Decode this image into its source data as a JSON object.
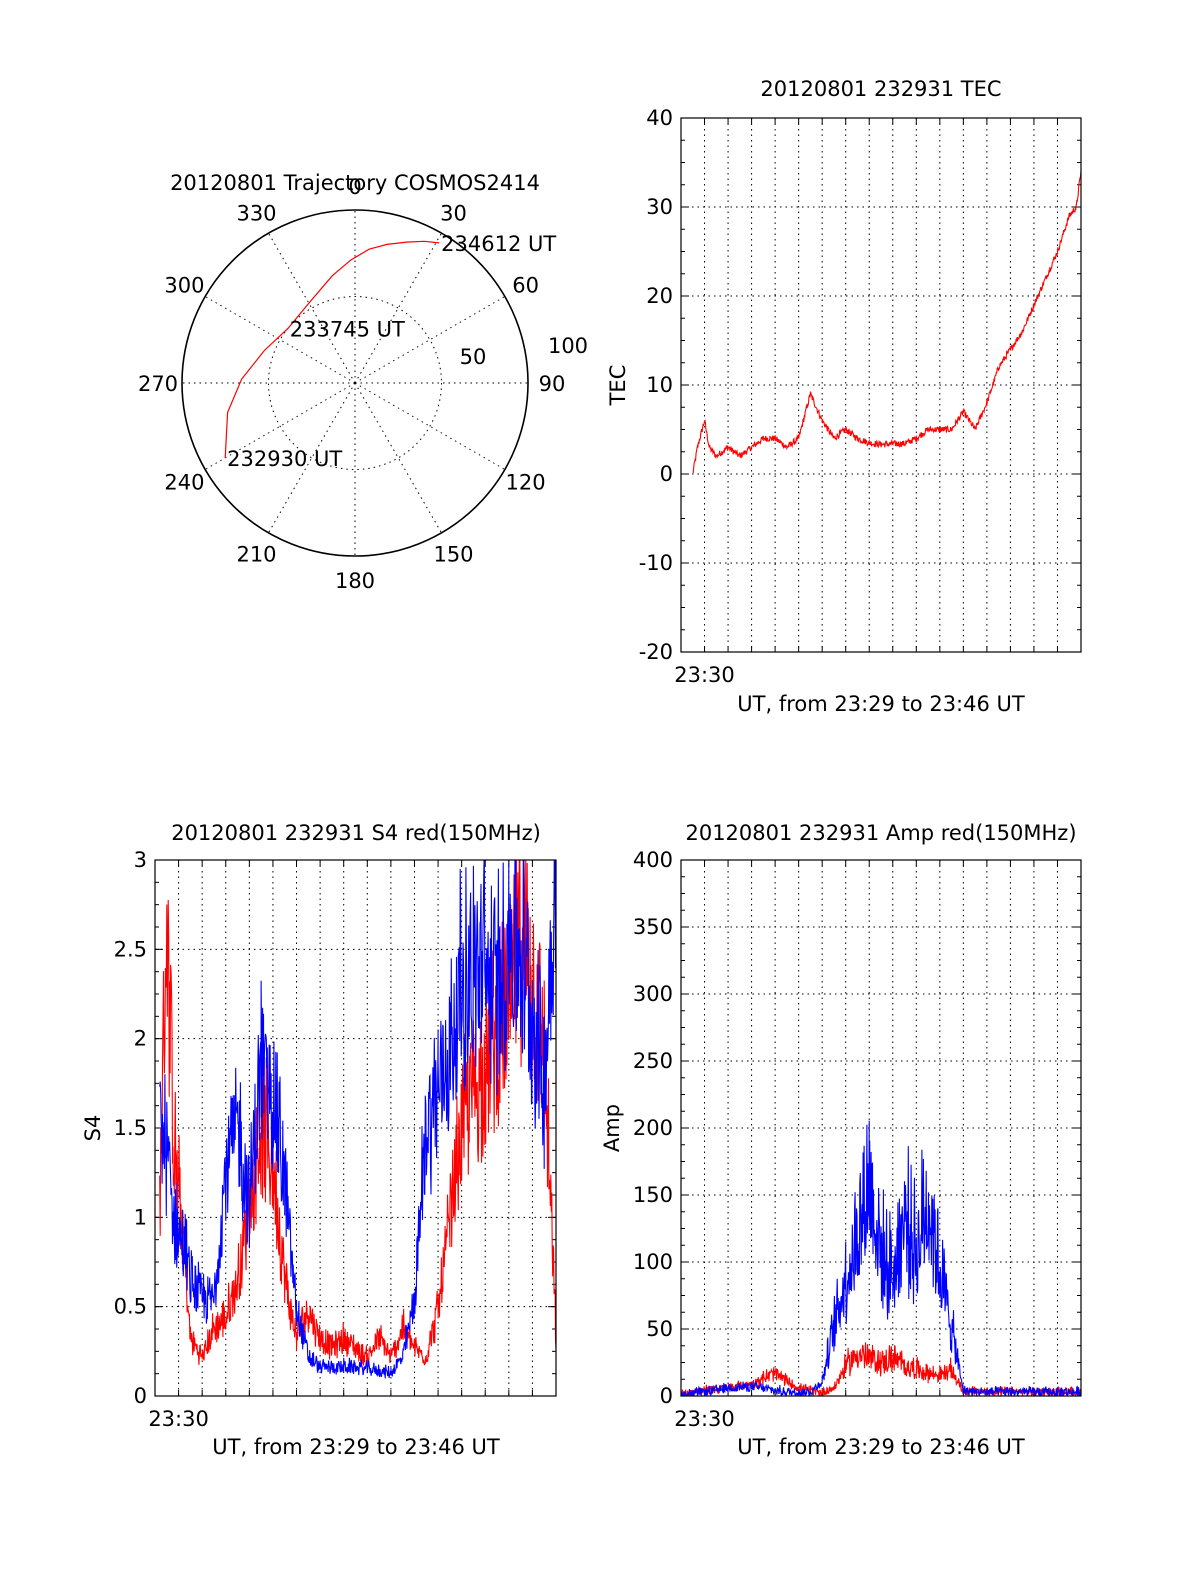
{
  "chart_data": [
    {
      "type": "polar",
      "title": "20120801 Trajectory COSMOS2414",
      "angle_labels": [
        "0",
        "30",
        "60",
        "90",
        "120",
        "150",
        "180",
        "210",
        "240",
        "270",
        "300",
        "330"
      ],
      "radial_labels": [
        "50",
        "100"
      ],
      "trajectory": {
        "color": "#ff0000",
        "points": [
          {
            "az": 240,
            "el": 12,
            "label": "232930 UT"
          },
          {
            "az": 257,
            "el": 22
          },
          {
            "az": 272,
            "el": 31
          },
          {
            "az": 290,
            "el": 40
          },
          {
            "az": 309,
            "el": 45,
            "label": "233745 UT"
          },
          {
            "az": 330,
            "el": 42
          },
          {
            "az": 348,
            "el": 33
          },
          {
            "az": 358,
            "el": 26
          },
          {
            "az": 6,
            "el": 20
          },
          {
            "az": 13,
            "el": 16
          },
          {
            "az": 20,
            "el": 12
          },
          {
            "az": 26,
            "el": 8
          },
          {
            "az": 31,
            "el": 5,
            "label": "234612 UT"
          }
        ]
      }
    },
    {
      "type": "line",
      "title": "20120801 232931 TEC",
      "xlabel": "UT, from 23:29 to 23:46 UT",
      "ylabel": "TEC",
      "xlim": [
        0,
        17
      ],
      "ylim": [
        -20,
        40
      ],
      "yticks": [
        "40",
        "30",
        "20",
        "10",
        "0",
        "-10",
        "-20"
      ],
      "xticks": [
        {
          "x": 1,
          "label": "23:30"
        }
      ],
      "series": [
        {
          "color": "#ff0000",
          "x": [
            0.5,
            0.7,
            1.0,
            1.2,
            1.5,
            2.0,
            2.5,
            3.0,
            3.5,
            4.0,
            4.5,
            5.0,
            5.5,
            6.0,
            6.5,
            7.0,
            7.5,
            8.0,
            8.5,
            9.0,
            9.5,
            10.0,
            10.5,
            11.0,
            11.5,
            12.0,
            12.5,
            13.0,
            13.5,
            14.0,
            14.5,
            15.0,
            15.5,
            16.0,
            16.5,
            16.8,
            17.0
          ],
          "y": [
            0,
            3,
            6,
            3,
            2,
            3,
            2,
            3,
            4,
            4,
            3,
            4,
            9,
            6,
            4,
            5,
            4,
            3.5,
            3.3,
            3.4,
            3.4,
            4,
            5,
            5,
            5,
            7,
            5,
            8,
            12,
            14,
            16,
            19,
            22,
            25,
            29,
            30,
            34
          ]
        }
      ]
    },
    {
      "type": "line",
      "title": "20120801 232931 S4 red(150MHz)",
      "xlabel": "UT, from 23:29 to 23:46 UT",
      "ylabel": "S4",
      "xlim": [
        0,
        17
      ],
      "ylim": [
        0,
        3
      ],
      "yticks": [
        "3",
        "2.5",
        "2",
        "1.5",
        "1",
        "0.5",
        "0"
      ],
      "xticks": [
        {
          "x": 1,
          "label": "23:30"
        }
      ],
      "series": [
        {
          "color": "#ff0000",
          "x": [
            0.2,
            0.5,
            0.8,
            1.2,
            1.5,
            2.0,
            2.5,
            3.0,
            3.5,
            4.0,
            4.5,
            5.0,
            5.5,
            6.0,
            6.5,
            7.0,
            7.5,
            8.0,
            8.5,
            9.0,
            9.5,
            10.0,
            10.5,
            11.0,
            11.5,
            12.0,
            12.5,
            13.0,
            13.5,
            14.0,
            14.5,
            15.0,
            15.5,
            16.0,
            16.5,
            17.0
          ],
          "y": [
            1.0,
            2.5,
            1.3,
            0.8,
            0.3,
            0.2,
            0.35,
            0.4,
            0.6,
            1.0,
            1.4,
            1.2,
            0.6,
            0.3,
            0.45,
            0.3,
            0.25,
            0.3,
            0.25,
            0.2,
            0.3,
            0.2,
            0.35,
            0.25,
            0.2,
            0.45,
            0.9,
            1.4,
            1.6,
            1.7,
            1.9,
            2.0,
            2.4,
            2.1,
            1.8,
            0.3
          ]
        },
        {
          "color": "#0000ff",
          "x": [
            0.2,
            0.5,
            0.8,
            1.2,
            1.5,
            2.0,
            2.5,
            3.0,
            3.5,
            4.0,
            4.5,
            5.0,
            5.5,
            6.0,
            6.5,
            7.0,
            7.5,
            8.0,
            8.5,
            9.0,
            9.5,
            10.0,
            10.5,
            11.0,
            11.5,
            12.0,
            12.5,
            13.0,
            13.5,
            14.0,
            14.5,
            15.0,
            15.5,
            16.0,
            16.5,
            17.0
          ],
          "y": [
            1.4,
            1.3,
            0.9,
            0.8,
            0.6,
            0.5,
            0.5,
            1.2,
            1.4,
            1.0,
            1.7,
            1.6,
            1.1,
            0.45,
            0.2,
            0.15,
            0.15,
            0.15,
            0.15,
            0.14,
            0.13,
            0.12,
            0.2,
            0.5,
            1.4,
            1.6,
            1.8,
            2.1,
            2.2,
            2.2,
            2.1,
            2.4,
            2.3,
            2.0,
            1.6,
            2.8
          ]
        }
      ]
    },
    {
      "type": "line",
      "title": "20120801 232931 Amp red(150MHz)",
      "xlabel": "UT, from 23:29 to 23:46 UT",
      "ylabel": "Amp",
      "xlim": [
        0,
        17
      ],
      "ylim": [
        0,
        400
      ],
      "yticks": [
        "400",
        "350",
        "300",
        "250",
        "200",
        "150",
        "100",
        "50",
        "0"
      ],
      "xticks": [
        {
          "x": 1,
          "label": "23:30"
        }
      ],
      "series": [
        {
          "color": "#ff0000",
          "x": [
            0.0,
            1.0,
            2.0,
            3.0,
            3.5,
            4.0,
            4.5,
            5.0,
            5.5,
            6.0,
            6.5,
            7.0,
            7.5,
            8.0,
            8.5,
            9.0,
            9.5,
            10.0,
            10.5,
            11.0,
            11.5,
            12.0,
            13.0,
            14.0,
            15.0,
            16.0,
            17.0
          ],
          "y": [
            0,
            3,
            5,
            8,
            12,
            15,
            10,
            5,
            3,
            2,
            5,
            20,
            28,
            25,
            22,
            25,
            20,
            18,
            15,
            14,
            17,
            3,
            2,
            2,
            2,
            2,
            2
          ]
        },
        {
          "color": "#0000ff",
          "x": [
            0.0,
            1.0,
            2.0,
            3.0,
            3.5,
            4.0,
            4.5,
            5.0,
            5.5,
            6.0,
            6.5,
            7.0,
            7.5,
            8.0,
            8.5,
            9.0,
            9.5,
            10.0,
            10.5,
            11.0,
            11.5,
            12.0,
            13.0,
            14.0,
            15.0,
            16.0,
            17.0
          ],
          "y": [
            0,
            2,
            5,
            6,
            5,
            3,
            2,
            2,
            2,
            10,
            45,
            80,
            105,
            145,
            95,
            80,
            120,
            95,
            130,
            85,
            45,
            3,
            2,
            2,
            2,
            2,
            2
          ]
        }
      ]
    }
  ]
}
